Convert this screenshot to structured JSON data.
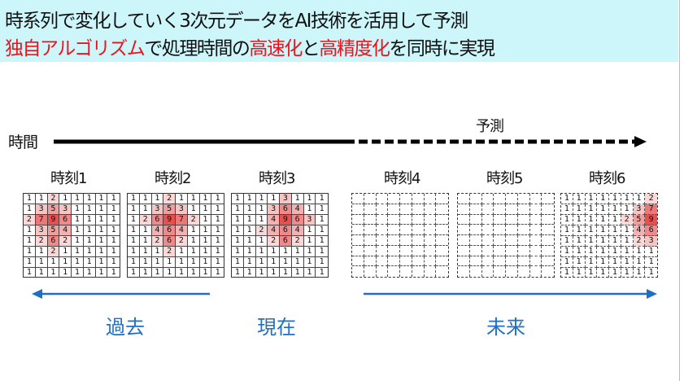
{
  "header": {
    "line1": "時系列で変化していく3次元データをAI技術を活用して予測",
    "line2_parts": [
      {
        "text": "独自アルゴリズム",
        "red": true
      },
      {
        "text": "で処理時間の",
        "red": false
      },
      {
        "text": "高速化",
        "red": true
      },
      {
        "text": "と",
        "red": false
      },
      {
        "text": "高精度化",
        "red": true
      },
      {
        "text": "を同時に実現",
        "red": false
      }
    ]
  },
  "timeline": {
    "label": "時間",
    "prediction_label": "予測"
  },
  "times": [
    {
      "label": "時刻1",
      "dashed": false,
      "values": [
        [
          1,
          1,
          2,
          1,
          1,
          1,
          1,
          1
        ],
        [
          1,
          3,
          5,
          3,
          1,
          1,
          1,
          1
        ],
        [
          2,
          7,
          9,
          6,
          1,
          1,
          1,
          1
        ],
        [
          1,
          3,
          5,
          4,
          1,
          1,
          1,
          1
        ],
        [
          1,
          2,
          6,
          2,
          1,
          1,
          1,
          1
        ],
        [
          1,
          1,
          2,
          1,
          1,
          1,
          1,
          1
        ],
        [
          1,
          1,
          1,
          1,
          1,
          1,
          1,
          1
        ],
        [
          1,
          1,
          1,
          1,
          1,
          1,
          1,
          1
        ]
      ]
    },
    {
      "label": "時刻2",
      "dashed": false,
      "values": [
        [
          1,
          1,
          1,
          2,
          1,
          1,
          1,
          1
        ],
        [
          1,
          1,
          3,
          5,
          3,
          1,
          1,
          1
        ],
        [
          1,
          2,
          6,
          9,
          7,
          2,
          1,
          1
        ],
        [
          1,
          1,
          4,
          6,
          4,
          1,
          1,
          1
        ],
        [
          1,
          1,
          2,
          6,
          2,
          1,
          1,
          1
        ],
        [
          1,
          1,
          1,
          2,
          1,
          1,
          1,
          1
        ],
        [
          1,
          1,
          1,
          1,
          1,
          1,
          1,
          1
        ],
        [
          1,
          1,
          1,
          1,
          1,
          1,
          1,
          1
        ]
      ]
    },
    {
      "label": "時刻3",
      "dashed": false,
      "values": [
        [
          1,
          1,
          1,
          1,
          3,
          1,
          1,
          1
        ],
        [
          1,
          1,
          1,
          3,
          6,
          4,
          1,
          1
        ],
        [
          1,
          1,
          1,
          4,
          9,
          6,
          3,
          1
        ],
        [
          1,
          1,
          2,
          4,
          6,
          4,
          1,
          1
        ],
        [
          1,
          1,
          1,
          2,
          6,
          2,
          1,
          1
        ],
        [
          1,
          1,
          1,
          1,
          1,
          1,
          1,
          1
        ],
        [
          1,
          1,
          1,
          1,
          1,
          1,
          1,
          1
        ],
        [
          1,
          1,
          1,
          1,
          1,
          1,
          1,
          1
        ]
      ]
    },
    {
      "label": "時刻4",
      "dashed": true,
      "values": null
    },
    {
      "label": "時刻5",
      "dashed": true,
      "values": null
    },
    {
      "label": "時刻6",
      "dashed": true,
      "values": [
        [
          1,
          1,
          1,
          1,
          1,
          1,
          1,
          2
        ],
        [
          1,
          1,
          1,
          1,
          1,
          1,
          3,
          7
        ],
        [
          1,
          1,
          1,
          1,
          1,
          2,
          5,
          9
        ],
        [
          1,
          1,
          1,
          1,
          1,
          1,
          4,
          6
        ],
        [
          1,
          1,
          1,
          1,
          1,
          1,
          2,
          3
        ],
        [
          1,
          1,
          1,
          1,
          1,
          1,
          1,
          1
        ],
        [
          1,
          1,
          1,
          1,
          1,
          1,
          1,
          1
        ],
        [
          1,
          1,
          1,
          1,
          1,
          1,
          1,
          1
        ]
      ]
    }
  ],
  "periods": {
    "past": "過去",
    "present": "現在",
    "future": "未来"
  },
  "colors": {
    "header_bg": "#cdf6fb",
    "accent_red": "#e8141e",
    "arrow_blue": "#1f6fc5",
    "heat": "#e63c3c"
  }
}
